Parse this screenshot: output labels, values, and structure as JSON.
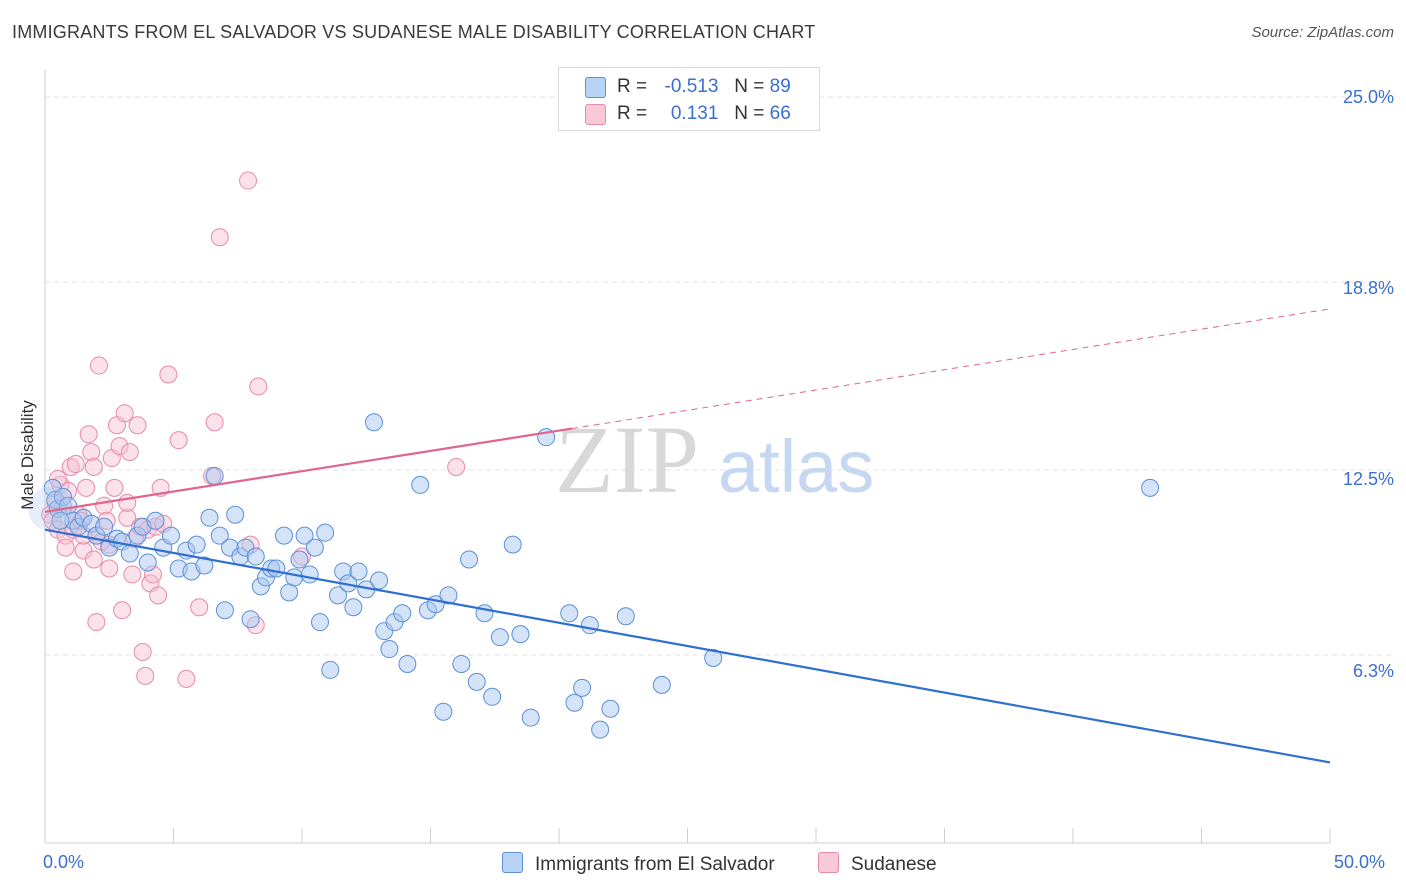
{
  "header": {
    "title": "IMMIGRANTS FROM EL SALVADOR VS SUDANESE MALE DISABILITY CORRELATION CHART",
    "source": "Source: ZipAtlas.com"
  },
  "legend": {
    "series1": {
      "r_label": "R =",
      "r_value": "-0.513",
      "n_label": "N =",
      "n_value": "89"
    },
    "series2": {
      "r_label": "R =",
      "r_value": "0.131",
      "n_label": "N =",
      "n_value": "66"
    }
  },
  "watermark": {
    "zip": "ZIP",
    "atlas": "atlas"
  },
  "colors": {
    "blue_fill": "#a9c8f0",
    "blue_stroke": "#5b8fd8",
    "blue_line": "#2f6fd0",
    "pink_fill": "#f7bfd0",
    "pink_stroke": "#e68aa8",
    "pink_line": "#e0648c",
    "axis_text": "#3a6fd0",
    "grid": "#e3e3e3"
  },
  "chart_data": {
    "type": "scatter",
    "title": "IMMIGRANTS FROM EL SALVADOR VS SUDANESE MALE DISABILITY CORRELATION CHART",
    "xlabel": "",
    "ylabel": "Male Disability",
    "xlim": [
      0,
      50
    ],
    "ylim": [
      0,
      26.3
    ],
    "x_tick_labels": [
      "0.0%",
      "50.0%"
    ],
    "y_ticks": [
      6.3,
      12.5,
      18.8,
      25.0
    ],
    "y_tick_labels": [
      "6.3%",
      "12.5%",
      "18.8%",
      "25.0%"
    ],
    "grid": true,
    "legend_position": "top-center",
    "series": [
      {
        "name": "Immigrants from El Salvador",
        "color": "#a9c8f0",
        "r": -0.513,
        "n": 89,
        "trend": {
          "x": [
            0,
            50
          ],
          "y": [
            10.5,
            2.7
          ],
          "dashed_from": null
        },
        "points": [
          [
            0.3,
            11.9
          ],
          [
            0.4,
            11.5
          ],
          [
            0.5,
            11.2
          ],
          [
            0.7,
            11.6
          ],
          [
            0.9,
            11.3
          ],
          [
            1.1,
            10.8
          ],
          [
            1.3,
            10.6
          ],
          [
            1.5,
            10.9
          ],
          [
            1.8,
            10.7
          ],
          [
            2.0,
            10.3
          ],
          [
            2.3,
            10.6
          ],
          [
            2.5,
            9.9
          ],
          [
            2.8,
            10.2
          ],
          [
            3.0,
            10.1
          ],
          [
            3.3,
            9.7
          ],
          [
            3.6,
            10.3
          ],
          [
            3.8,
            10.6
          ],
          [
            4.0,
            9.4
          ],
          [
            4.3,
            10.8
          ],
          [
            4.6,
            9.9
          ],
          [
            4.9,
            10.3
          ],
          [
            5.2,
            9.2
          ],
          [
            5.5,
            9.8
          ],
          [
            5.7,
            9.1
          ],
          [
            5.9,
            10.0
          ],
          [
            6.2,
            9.3
          ],
          [
            6.4,
            10.9
          ],
          [
            6.6,
            12.3
          ],
          [
            6.8,
            10.3
          ],
          [
            7.0,
            7.8
          ],
          [
            7.2,
            9.9
          ],
          [
            7.4,
            11.0
          ],
          [
            7.6,
            9.6
          ],
          [
            7.8,
            9.9
          ],
          [
            8.0,
            7.5
          ],
          [
            8.2,
            9.6
          ],
          [
            8.4,
            8.6
          ],
          [
            8.6,
            8.9
          ],
          [
            8.8,
            9.2
          ],
          [
            9.0,
            9.2
          ],
          [
            9.3,
            10.3
          ],
          [
            9.5,
            8.4
          ],
          [
            9.7,
            8.9
          ],
          [
            9.9,
            9.5
          ],
          [
            10.1,
            10.3
          ],
          [
            10.3,
            9.0
          ],
          [
            10.5,
            9.9
          ],
          [
            10.7,
            7.4
          ],
          [
            10.9,
            10.4
          ],
          [
            11.1,
            5.8
          ],
          [
            11.4,
            8.3
          ],
          [
            11.6,
            9.1
          ],
          [
            11.8,
            8.7
          ],
          [
            12.0,
            7.9
          ],
          [
            12.2,
            9.1
          ],
          [
            12.5,
            8.5
          ],
          [
            12.8,
            14.1
          ],
          [
            13.0,
            8.8
          ],
          [
            13.2,
            7.1
          ],
          [
            13.4,
            6.5
          ],
          [
            13.6,
            7.4
          ],
          [
            13.9,
            7.7
          ],
          [
            14.1,
            6.0
          ],
          [
            14.6,
            12.0
          ],
          [
            14.9,
            7.8
          ],
          [
            15.2,
            8.0
          ],
          [
            15.5,
            4.4
          ],
          [
            15.7,
            8.3
          ],
          [
            16.2,
            6.0
          ],
          [
            16.5,
            9.5
          ],
          [
            16.8,
            5.4
          ],
          [
            17.1,
            7.7
          ],
          [
            17.4,
            4.9
          ],
          [
            17.7,
            6.9
          ],
          [
            18.2,
            10.0
          ],
          [
            18.5,
            7.0
          ],
          [
            18.9,
            4.2
          ],
          [
            19.5,
            13.6
          ],
          [
            20.4,
            7.7
          ],
          [
            20.6,
            4.7
          ],
          [
            20.9,
            5.2
          ],
          [
            21.2,
            7.3
          ],
          [
            21.6,
            3.8
          ],
          [
            22.0,
            4.5
          ],
          [
            22.6,
            7.6
          ],
          [
            24.0,
            5.3
          ],
          [
            26.0,
            6.2
          ],
          [
            43.0,
            11.9
          ],
          [
            0.6,
            10.8
          ]
        ]
      },
      {
        "name": "Sudanese",
        "color": "#f7bfd0",
        "r": 0.131,
        "n": 66,
        "trend": {
          "x": [
            0,
            50
          ],
          "y": [
            11.1,
            17.9
          ],
          "dashed_from": 20.5
        },
        "points": [
          [
            0.2,
            11.0
          ],
          [
            0.3,
            10.8
          ],
          [
            0.4,
            11.4
          ],
          [
            0.5,
            10.5
          ],
          [
            0.6,
            12.0
          ],
          [
            0.7,
            11.3
          ],
          [
            0.8,
            10.3
          ],
          [
            0.9,
            11.8
          ],
          [
            1.0,
            12.6
          ],
          [
            1.1,
            9.1
          ],
          [
            1.1,
            10.5
          ],
          [
            1.2,
            12.7
          ],
          [
            1.3,
            11.0
          ],
          [
            1.4,
            10.8
          ],
          [
            1.5,
            9.8
          ],
          [
            1.6,
            11.9
          ],
          [
            1.7,
            13.7
          ],
          [
            1.8,
            13.1
          ],
          [
            1.9,
            12.6
          ],
          [
            2.0,
            10.3
          ],
          [
            2.0,
            7.4
          ],
          [
            2.1,
            16.0
          ],
          [
            2.2,
            10.1
          ],
          [
            2.3,
            11.3
          ],
          [
            2.4,
            10.8
          ],
          [
            2.5,
            9.2
          ],
          [
            2.6,
            12.9
          ],
          [
            2.7,
            11.9
          ],
          [
            2.8,
            14.0
          ],
          [
            2.9,
            13.3
          ],
          [
            3.0,
            7.8
          ],
          [
            3.1,
            14.4
          ],
          [
            3.2,
            10.9
          ],
          [
            3.3,
            13.1
          ],
          [
            3.4,
            9.0
          ],
          [
            3.5,
            10.2
          ],
          [
            3.6,
            14.0
          ],
          [
            3.7,
            10.6
          ],
          [
            3.8,
            6.4
          ],
          [
            3.9,
            5.6
          ],
          [
            4.0,
            10.5
          ],
          [
            4.1,
            8.7
          ],
          [
            4.2,
            9.0
          ],
          [
            4.3,
            10.6
          ],
          [
            4.4,
            8.3
          ],
          [
            4.5,
            11.9
          ],
          [
            4.6,
            10.7
          ],
          [
            4.8,
            15.7
          ],
          [
            5.2,
            13.5
          ],
          [
            5.5,
            5.5
          ],
          [
            6.0,
            7.9
          ],
          [
            6.5,
            12.3
          ],
          [
            6.6,
            14.1
          ],
          [
            6.8,
            20.3
          ],
          [
            7.9,
            22.2
          ],
          [
            8.0,
            10.0
          ],
          [
            8.2,
            7.3
          ],
          [
            8.3,
            15.3
          ],
          [
            10.0,
            9.6
          ],
          [
            16.0,
            12.6
          ],
          [
            1.5,
            10.3
          ],
          [
            0.8,
            9.9
          ],
          [
            2.5,
            10.0
          ],
          [
            3.2,
            11.4
          ],
          [
            1.9,
            9.5
          ],
          [
            0.5,
            12.2
          ]
        ]
      }
    ]
  },
  "bottom_legend": {
    "item1": "Immigrants from El Salvador",
    "item2": "Sudanese"
  }
}
